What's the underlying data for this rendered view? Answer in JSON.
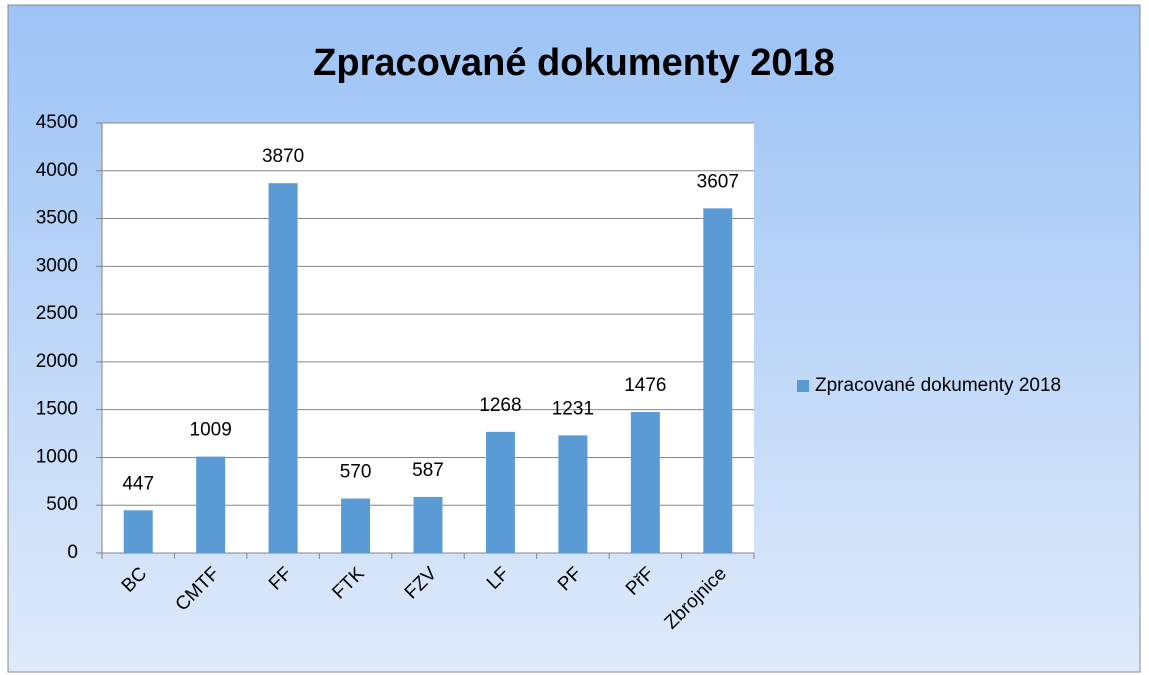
{
  "chart_data": {
    "type": "bar",
    "title": "Zpracované dokumenty 2018",
    "categories": [
      "BC",
      "CMTF",
      "FF",
      "FTK",
      "FZV",
      "LF",
      "PF",
      "PřF",
      "Zbrojnice"
    ],
    "series": [
      {
        "name": "Zpracované dokumenty 2018",
        "color": "#5b9bd5",
        "values": [
          447,
          1009,
          3870,
          570,
          587,
          1268,
          1231,
          1476,
          3607
        ]
      }
    ],
    "ylim": [
      0,
      4500
    ],
    "yticks": [
      0,
      500,
      1000,
      1500,
      2000,
      2500,
      3000,
      3500,
      4000,
      4500
    ],
    "grid": true,
    "legend": "right"
  }
}
